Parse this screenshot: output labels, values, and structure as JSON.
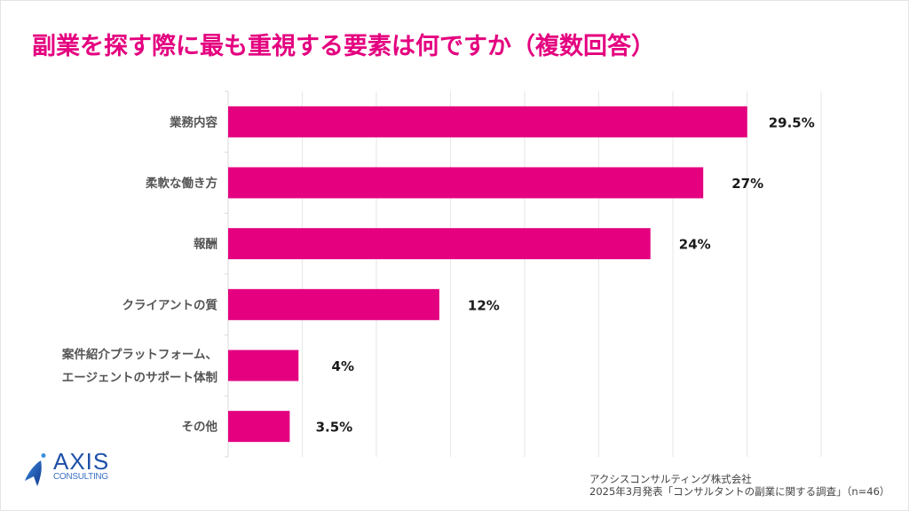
{
  "title": "副業を探す際に最も重視する要素は何ですか（複数回答）",
  "colors": {
    "bar": "#e4007f",
    "title": "#e4007f",
    "grid": "#e6e6e6",
    "logo": "#1e4fa8"
  },
  "chart_data": {
    "type": "bar",
    "orientation": "horizontal",
    "title": "副業を探す際に最も重視する要素は何ですか（複数回答）",
    "categories": [
      [
        "業務内容"
      ],
      [
        "柔軟な働き方"
      ],
      [
        "報酬"
      ],
      [
        "クライアントの質"
      ],
      [
        "案件紹介プラットフォーム、",
        "エージェントのサポート体制"
      ],
      [
        "その他"
      ]
    ],
    "values": [
      29.5,
      27,
      24,
      12,
      4,
      3.5
    ],
    "value_labels": [
      "29.5%",
      "27%",
      "24%",
      "12%",
      "4%",
      "3.5%"
    ],
    "unit": "%",
    "xlim": [
      0,
      33.7
    ],
    "grid": true,
    "gridline_count": 8,
    "legend": "none",
    "xlabel": "",
    "ylabel": ""
  },
  "source": {
    "line1": "アクシスコンサルティング株式会社",
    "line2": "2025年3月発表「コンサルタントの副業に関する調査」（n=46）"
  },
  "logo": {
    "name": "AXIS",
    "sub": "CONSULTING",
    "icon": "rocket-logo-icon"
  }
}
